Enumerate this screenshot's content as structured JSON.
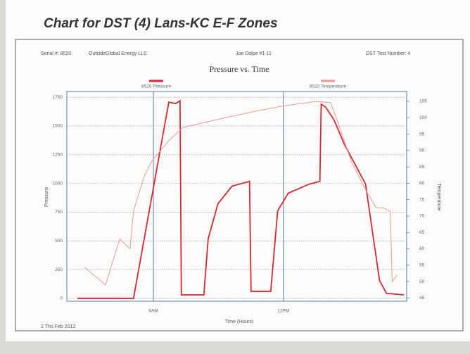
{
  "title": "Chart for DST (4) Lans-KC E-F Zones",
  "header": [
    "Serial #: 8520",
    "Outside",
    "Global Energy LLC",
    "Joe Dolpe #1-11",
    "DST Test Number: 4"
  ],
  "footer_date": "2 Thu Feb 2012",
  "chart_data": {
    "type": "line",
    "title": "Pressure vs. Time",
    "x_label": "Time (Hours)",
    "y_label": "Pressure",
    "y2_label": "Temperature",
    "xlim": [
      2,
      17.7
    ],
    "xticks": [
      {
        "value": 6,
        "label": "6AM"
      },
      {
        "value": 12,
        "label": "12PM"
      }
    ],
    "ylim": [
      -25,
      1800
    ],
    "yticks": [
      0,
      250,
      500,
      750,
      1000,
      1250,
      1500,
      1750
    ],
    "y2lim": [
      44,
      108
    ],
    "y2ticks": [
      45,
      50,
      55,
      60,
      65,
      70,
      75,
      80,
      85,
      90,
      95,
      100,
      105
    ],
    "grid": true,
    "series": [
      {
        "name": "8520 Pressure",
        "color": "#d42a35",
        "x": [
          2.49,
          5.08,
          6.71,
          7.03,
          7.23,
          7.29,
          8.33,
          8.53,
          8.98,
          9.63,
          10.44,
          10.51,
          11.42,
          11.74,
          12.23,
          13.2,
          13.69,
          13.75,
          13.95,
          14.34,
          14.82,
          15.8,
          16.45,
          16.77,
          17.58
        ],
        "values": [
          0,
          0,
          1707,
          1695,
          1720,
          30,
          30,
          518,
          823,
          976,
          1018,
          61,
          61,
          762,
          915,
          994,
          1018,
          1689,
          1665,
          1555,
          1341,
          994,
          152,
          43,
          30
        ]
      },
      {
        "name": "8520 Temperature",
        "color": "#e79a9e",
        "axis": "y2",
        "x": [
          2.81,
          3.79,
          4.44,
          4.92,
          5.08,
          5.57,
          5.9,
          6.71,
          7.36,
          8.66,
          10.28,
          11.9,
          13.53,
          14.18,
          14.5,
          15.15,
          15.8,
          16.29,
          16.61,
          16.94,
          17.03,
          17.26
        ],
        "values": [
          54.4,
          49,
          63,
          60,
          71.5,
          82,
          86.5,
          93,
          97,
          99,
          101.4,
          103.5,
          105,
          104.6,
          99,
          86.5,
          78,
          72.5,
          72.5,
          71.5,
          50,
          52
        ]
      }
    ]
  }
}
